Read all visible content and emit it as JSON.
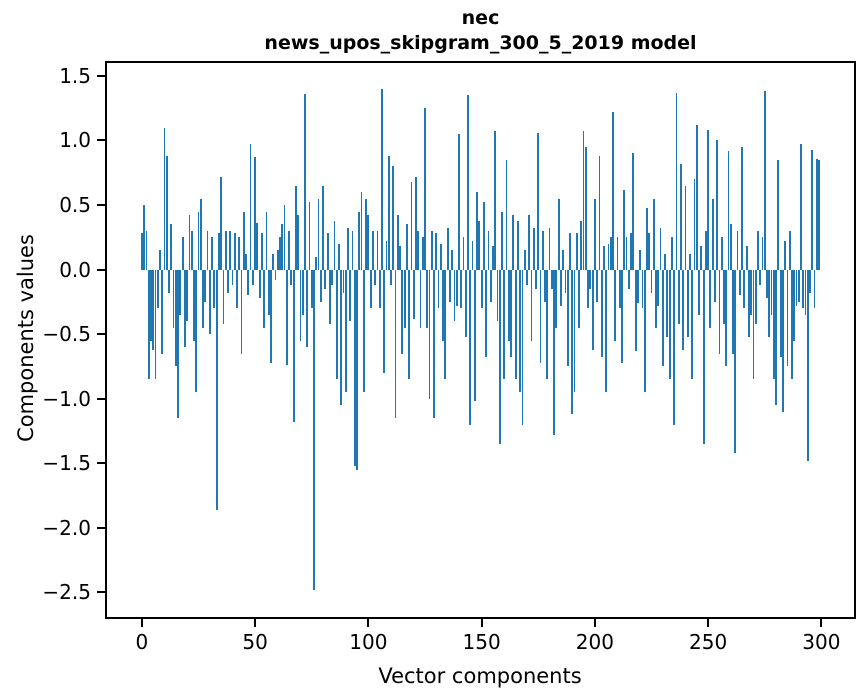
{
  "figure": {
    "title_line1": "nec",
    "title_line2": "news_upos_skipgram_300_5_2019 model"
  },
  "chart_data": {
    "type": "bar",
    "title": "nec",
    "subtitle": "news_upos_skipgram_300_5_2019 model",
    "xlabel": "Vector components",
    "ylabel": "Components values",
    "bar_color": "#1f77b4",
    "grid": false,
    "legend_position": "none",
    "xlim": [
      -15.4,
      314.4
    ],
    "ylim": [
      -2.69,
      1.6
    ],
    "x_ticks": [
      0,
      50,
      100,
      150,
      200,
      250,
      300
    ],
    "y_ticks": [
      1.5,
      1.0,
      0.5,
      0.0,
      -0.5,
      -1.0,
      -1.5,
      -2.0,
      -2.5
    ],
    "y_tick_labels": [
      "1.5",
      "1.0",
      "0.5",
      "0.0",
      "−0.5",
      "−1.0",
      "−1.5",
      "−2.0",
      "−2.5"
    ],
    "x_description": "vector component index 0..299",
    "values": [
      0.28,
      0.5,
      0.3,
      -0.85,
      -0.55,
      -0.62,
      -0.85,
      -0.3,
      0.15,
      -0.65,
      1.1,
      0.88,
      -0.18,
      0.35,
      -0.45,
      -0.75,
      -1.15,
      -0.35,
      0.25,
      -0.6,
      -0.4,
      0.42,
      0.3,
      -0.55,
      -0.95,
      0.45,
      0.55,
      -0.45,
      -0.25,
      0.3,
      -0.5,
      0.25,
      -0.3,
      -1.86,
      0.28,
      0.72,
      -0.42,
      0.3,
      -0.18,
      0.3,
      -0.12,
      0.28,
      -0.3,
      0.25,
      -0.65,
      0.45,
      0.12,
      -0.2,
      0.97,
      -0.12,
      0.87,
      0.36,
      -0.22,
      0.28,
      -0.45,
      0.45,
      -0.35,
      -0.72,
      0.12,
      -0.08,
      0.15,
      0.25,
      0.35,
      0.5,
      -0.74,
      0.3,
      -0.12,
      -1.18,
      0.65,
      0.42,
      -0.55,
      -0.35,
      1.36,
      -0.6,
      0.52,
      -0.3,
      -2.48,
      0.1,
      0.55,
      -0.25,
      0.65,
      -0.15,
      0.28,
      -0.42,
      -0.12,
      0.38,
      -0.85,
      0.2,
      -1.05,
      -0.18,
      -0.95,
      0.32,
      -0.4,
      0.3,
      -1.52,
      -1.55,
      0.45,
      0.6,
      -0.95,
      0.55,
      0.42,
      -0.3,
      0.3,
      -0.12,
      0.3,
      -0.3,
      1.4,
      -0.8,
      0.22,
      0.88,
      -0.12,
      0.8,
      -1.15,
      0.42,
      0.18,
      -0.65,
      -0.45,
      0.35,
      -0.85,
      0.68,
      -0.38,
      0.72,
      0.3,
      -0.45,
      0.25,
      1.25,
      -0.45,
      -1.0,
      0.3,
      -1.15,
      0.28,
      -0.3,
      0.2,
      -0.55,
      -0.85,
      0.32,
      -0.25,
      0.15,
      -0.4,
      -0.28,
      1.05,
      -0.3,
      0.25,
      -0.52,
      1.35,
      -1.2,
      0.22,
      -1.02,
      0.6,
      0.38,
      -0.3,
      0.52,
      -0.68,
      0.3,
      -0.25,
      0.18,
      1.07,
      -0.4,
      -1.35,
      0.45,
      -0.85,
      0.85,
      -0.55,
      -0.68,
      0.42,
      -0.85,
      0.38,
      -0.95,
      -1.2,
      0.15,
      -0.12,
      0.42,
      -0.55,
      0.32,
      -0.15,
      1.06,
      -0.72,
      0.3,
      -0.25,
      -0.85,
      0.32,
      -0.15,
      -1.28,
      -0.45,
      0.55,
      -0.28,
      0.15,
      -0.18,
      -0.75,
      0.28,
      -1.12,
      -0.95,
      0.28,
      -0.45,
      0.38,
      1.07,
      0.95,
      -0.3,
      -0.15,
      -0.62,
      0.55,
      -0.25,
      0.88,
      -0.68,
      0.18,
      -0.95,
      0.2,
      0.25,
      1.22,
      -0.55,
      0.25,
      -0.3,
      -0.72,
      0.62,
      0.25,
      -0.15,
      0.28,
      0.9,
      -0.63,
      -0.26,
      0.15,
      -0.3,
      -0.95,
      0.48,
      0.28,
      -0.18,
      0.55,
      -0.45,
      -0.28,
      0.32,
      -0.75,
      0.12,
      -0.52,
      -0.85,
      0.25,
      -1.2,
      1.37,
      -0.42,
      0.82,
      -0.62,
      0.65,
      -0.52,
      0.12,
      -0.85,
      0.7,
      1.12,
      -0.35,
      0.18,
      -1.35,
      0.3,
      1.08,
      -0.45,
      0.55,
      -0.25,
      1.0,
      -0.65,
      0.25,
      -0.42,
      -0.75,
      0.92,
      0.35,
      -0.65,
      -1.42,
      0.3,
      -0.2,
      0.95,
      -0.3,
      0.18,
      -0.52,
      -0.35,
      -0.85,
      -0.42,
      0.3,
      -0.12,
      0.25,
      1.38,
      -0.22,
      -0.52,
      -0.35,
      -0.85,
      -1.05,
      0.85,
      -0.68,
      -1.1,
      0.22,
      -0.75,
      0.3,
      -0.85,
      -0.55,
      -0.28,
      -0.25,
      0.97,
      -0.3,
      -0.35,
      -1.48,
      -0.18,
      0.93,
      -0.3,
      0.86,
      0.85
    ]
  }
}
